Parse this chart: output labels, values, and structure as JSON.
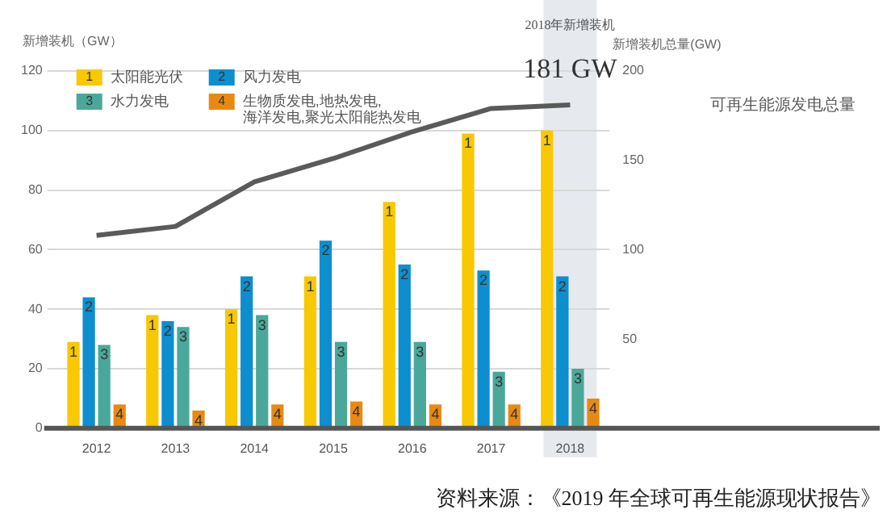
{
  "chart_data": {
    "type": "bar",
    "categories": [
      "2012",
      "2013",
      "2014",
      "2015",
      "2016",
      "2017",
      "2018"
    ],
    "series": [
      {
        "name": "太阳能光伏",
        "color": "#f8c800",
        "values": [
          29,
          38,
          40,
          51,
          76,
          99,
          100
        ]
      },
      {
        "name": "风力发电",
        "color": "#0d8ecf",
        "values": [
          44,
          36,
          51,
          63,
          55,
          53,
          51
        ]
      },
      {
        "name": "水力发电",
        "color": "#4aa89a",
        "values": [
          28,
          34,
          38,
          29,
          29,
          19,
          20
        ]
      },
      {
        "name": "生物质发电,地热发电,海洋发电,聚光太阳能热发电",
        "color": "#e88a12",
        "values": [
          8,
          6,
          8,
          9,
          8,
          8,
          10
        ]
      },
      {
        "name": "可再生能源发电总量",
        "type": "line",
        "axis": "y2",
        "color": "#5a5a5a",
        "values": [
          108,
          113,
          138,
          151,
          166,
          179,
          181
        ]
      }
    ],
    "ylabel": "新增装机（GW）",
    "y2label": "新增装机总量(GW)",
    "ylim": [
      0,
      120
    ],
    "yticks": [
      0,
      20,
      40,
      60,
      80,
      100,
      120
    ],
    "y2lim": [
      0,
      200
    ],
    "y2ticks": [
      50,
      100,
      150,
      200
    ],
    "bands": [
      {
        "axis": "x",
        "from": "2018",
        "to": "2018",
        "color": "#e6e9ee"
      }
    ],
    "annotations": [
      "2018年新增装机",
      "181 GW",
      "资料来源：《2019 年全球可再生能源现状报告》",
      {
        "text": "1",
        "x": "2012",
        "y": 29
      },
      {
        "text": "1",
        "x": "2013",
        "y": 38
      },
      {
        "text": "1",
        "x": "2014",
        "y": 40
      },
      {
        "text": "1",
        "x": "2015",
        "y": 51
      },
      "1",
      "1",
      "1",
      {
        "text": "2",
        "x": "2012",
        "y": 44
      },
      {
        "text": "2",
        "x": "2013",
        "y": 36
      },
      {
        "text": "2",
        "x": "2014",
        "y": 51
      },
      {
        "text": "2",
        "x": "2015",
        "y": 63
      },
      {
        "text": "2",
        "x": "2016",
        "y": 55
      },
      {
        "text": "2",
        "x": "2017",
        "y": 53
      },
      {
        "text": "2",
        "x": "2018",
        "y": 51
      },
      {
        "text": "3",
        "x": "2012",
        "y": 28
      },
      {
        "text": "3",
        "x": "2013",
        "y": 34
      },
      {
        "text": "3",
        "x": "2014",
        "y": 38
      },
      {
        "text": "3",
        "x": "2015",
        "y": 29
      },
      {
        "text": "3",
        "x": "2016",
        "y": 29
      },
      {
        "text": "3",
        "x": "2017",
        "y": 19
      },
      {
        "text": "3",
        "x": "2018",
        "y": 20
      },
      {
        "text": "4",
        "x": "2012",
        "y": 8
      },
      {
        "text": "4",
        "x": "2013",
        "y": 6
      },
      {
        "text": "4",
        "x": "2014",
        "y": 8
      },
      {
        "text": "4",
        "x": "2015",
        "y": 9
      },
      {
        "text": "4",
        "x": "2016",
        "y": 8
      },
      {
        "text": "4",
        "x": "2017",
        "y": 8
      },
      {
        "text": "4",
        "x": "2018",
        "y": 10
      }
    ],
    "grid": "y",
    "legend": "top left",
    "marker": "none",
    "line_style": "solid"
  }
}
